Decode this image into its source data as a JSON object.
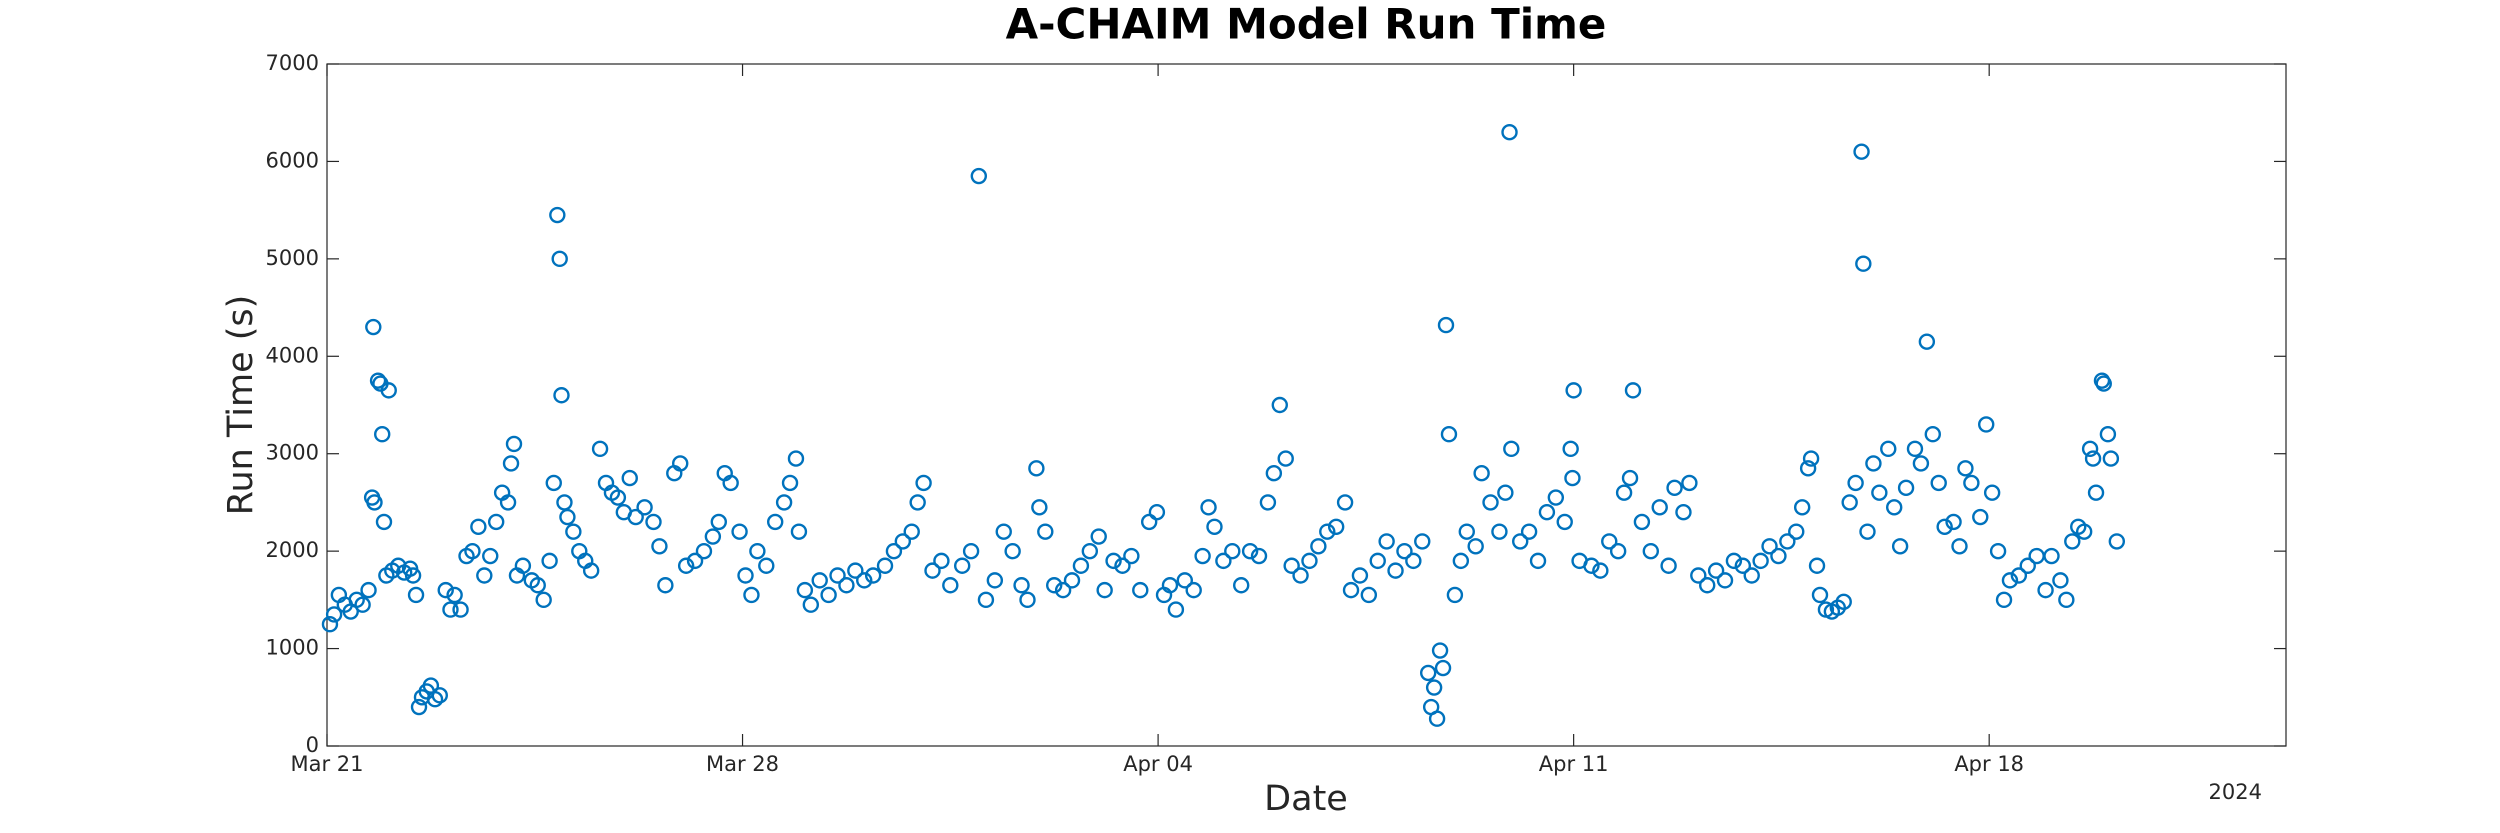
{
  "chart_data": {
    "type": "scatter",
    "title": "A-CHAIM Model Run Time",
    "xlabel": "Date",
    "ylabel": "Run Time (s)",
    "x_offset_label": "2024",
    "color": "#0072BD",
    "xlim": [
      0,
      33
    ],
    "xticks": [
      {
        "value": 0,
        "label": "Mar 21"
      },
      {
        "value": 7,
        "label": "Mar 28"
      },
      {
        "value": 14,
        "label": "Apr 04"
      },
      {
        "value": 21,
        "label": "Apr 11"
      },
      {
        "value": 28,
        "label": "Apr 18"
      }
    ],
    "ylim": [
      0,
      7000
    ],
    "yticks": [
      0,
      1000,
      2000,
      3000,
      4000,
      5000,
      6000,
      7000
    ],
    "x": [
      0.05,
      0.12,
      0.2,
      0.3,
      0.4,
      0.5,
      0.6,
      0.7,
      0.76,
      0.78,
      0.8,
      0.86,
      0.9,
      0.93,
      0.96,
      1.0,
      1.04,
      1.1,
      1.2,
      1.3,
      1.4,
      1.45,
      1.5,
      1.55,
      1.6,
      1.68,
      1.75,
      1.82,
      1.9,
      2.0,
      2.08,
      2.15,
      2.25,
      2.35,
      2.45,
      2.55,
      2.65,
      2.75,
      2.85,
      2.95,
      3.05,
      3.1,
      3.15,
      3.2,
      3.3,
      3.45,
      3.55,
      3.65,
      3.75,
      3.82,
      3.88,
      3.92,
      3.95,
      4.0,
      4.05,
      4.15,
      4.25,
      4.35,
      4.45,
      4.6,
      4.7,
      4.8,
      4.9,
      5.0,
      5.1,
      5.2,
      5.35,
      5.5,
      5.6,
      5.7,
      5.85,
      5.95,
      6.05,
      6.2,
      6.35,
      6.5,
      6.6,
      6.7,
      6.8,
      6.95,
      7.05,
      7.15,
      7.25,
      7.4,
      7.55,
      7.7,
      7.8,
      7.9,
      7.95,
      8.05,
      8.15,
      8.3,
      8.45,
      8.6,
      8.75,
      8.9,
      9.05,
      9.2,
      9.4,
      9.55,
      9.7,
      9.85,
      9.95,
      10.05,
      10.2,
      10.35,
      10.5,
      10.7,
      10.85,
      10.98,
      11.1,
      11.25,
      11.4,
      11.55,
      11.7,
      11.8,
      11.95,
      12.0,
      12.1,
      12.25,
      12.4,
      12.55,
      12.7,
      12.85,
      13.0,
      13.1,
      13.25,
      13.4,
      13.55,
      13.7,
      13.85,
      13.98,
      14.1,
      14.2,
      14.3,
      14.45,
      14.6,
      14.75,
      14.85,
      14.95,
      15.1,
      15.25,
      15.4,
      15.55,
      15.7,
      15.85,
      15.95,
      16.05,
      16.15,
      16.25,
      16.4,
      16.55,
      16.7,
      16.85,
      17.0,
      17.15,
      17.25,
      17.4,
      17.55,
      17.7,
      17.85,
      18.0,
      18.15,
      18.3,
      18.45,
      18.55,
      18.6,
      18.65,
      18.7,
      18.75,
      18.8,
      18.85,
      18.9,
      19.0,
      19.1,
      19.2,
      19.35,
      19.45,
      19.6,
      19.75,
      19.85,
      19.92,
      19.95,
      20.1,
      20.25,
      20.4,
      20.55,
      20.7,
      20.85,
      20.95,
      20.98,
      21.0,
      21.1,
      21.3,
      21.45,
      21.6,
      21.75,
      21.85,
      21.95,
      22.0,
      22.15,
      22.3,
      22.45,
      22.6,
      22.7,
      22.85,
      22.95,
      23.1,
      23.25,
      23.4,
      23.55,
      23.7,
      23.85,
      24.0,
      24.15,
      24.3,
      24.45,
      24.6,
      24.75,
      24.85,
      24.95,
      25.0,
      25.1,
      25.15,
      25.25,
      25.35,
      25.45,
      25.55,
      25.65,
      25.75,
      25.85,
      25.88,
      25.95,
      26.05,
      26.15,
      26.3,
      26.4,
      26.5,
      26.6,
      26.75,
      26.85,
      26.95,
      27.05,
      27.15,
      27.25,
      27.4,
      27.5,
      27.6,
      27.7,
      27.85,
      27.95,
      28.05,
      28.15,
      28.25,
      28.35,
      28.5,
      28.65,
      28.8,
      28.95,
      29.05,
      29.2,
      29.3,
      29.4,
      29.5,
      29.6,
      29.7,
      29.75,
      29.8,
      29.9,
      29.93,
      30.0,
      30.05,
      30.15
    ],
    "y": [
      1250,
      1350,
      1550,
      1450,
      1380,
      1500,
      1450,
      1600,
      2550,
      4300,
      2500,
      3750,
      3720,
      3200,
      2300,
      1750,
      3650,
      1800,
      1850,
      1780,
      1820,
      1750,
      1550,
      400,
      500,
      560,
      620,
      480,
      520,
      1600,
      1400,
      1550,
      1400,
      1950,
      2000,
      2250,
      1750,
      1950,
      2300,
      2600,
      2500,
      2900,
      3100,
      1750,
      1850,
      1700,
      1650,
      1500,
      1900,
      2700,
      5450,
      5000,
      3600,
      2500,
      2350,
      2200,
      2000,
      1900,
      1800,
      3050,
      2700,
      2600,
      2550,
      2400,
      2750,
      2350,
      2450,
      2300,
      2050,
      1650,
      2800,
      2900,
      1850,
      1900,
      2000,
      2150,
      2300,
      2800,
      2700,
      2200,
      1750,
      1550,
      2000,
      1850,
      2300,
      2500,
      2700,
      2950,
      2200,
      1600,
      1450,
      1700,
      1550,
      1750,
      1650,
      1800,
      1700,
      1750,
      1850,
      2000,
      2100,
      2200,
      2500,
      2700,
      1800,
      1900,
      1650,
      1850,
      2000,
      5850,
      1500,
      1700,
      2200,
      2000,
      1650,
      1500,
      2850,
      2450,
      2200,
      1650,
      1600,
      1700,
      1850,
      2000,
      2150,
      1600,
      1900,
      1850,
      1950,
      1600,
      2300,
      2400,
      1550,
      1650,
      1400,
      1700,
      1600,
      1950,
      2450,
      2250,
      1900,
      2000,
      1650,
      2000,
      1950,
      2500,
      2800,
      3500,
      2950,
      1850,
      1750,
      1900,
      2050,
      2200,
      2250,
      2500,
      1600,
      1750,
      1550,
      1900,
      2100,
      1800,
      2000,
      1900,
      2100,
      750,
      400,
      600,
      280,
      980,
      800,
      4320,
      3200,
      1550,
      1900,
      2200,
      2050,
      2800,
      2500,
      2200,
      2600,
      6300,
      3050,
      2100,
      2200,
      1900,
      2400,
      2550,
      2300,
      3050,
      2750,
      3650,
      1900,
      1850,
      1800,
      2100,
      2000,
      2600,
      2750,
      3650,
      2300,
      2000,
      2450,
      1850,
      2650,
      2400,
      2700,
      1750,
      1650,
      1800,
      1700,
      1900,
      1850,
      1750,
      1900,
      2050,
      1950,
      2100,
      2200,
      2450,
      2850,
      2950,
      1850,
      1550,
      1400,
      1380,
      1420,
      1480,
      2500,
      2700,
      6100,
      4950,
      2200,
      2900,
      2600,
      3050,
      2450,
      2050,
      2650,
      3050,
      2900,
      4150,
      3200,
      2700,
      2250,
      2300,
      2050,
      2850,
      2700,
      2350,
      3300,
      2600,
      2000,
      1500,
      1700,
      1750,
      1850,
      1950,
      1600,
      1950,
      1700,
      1500,
      2100,
      2250,
      2200,
      3050,
      2950,
      2600,
      3750,
      3720,
      3200,
      2950,
      2100
    ]
  }
}
